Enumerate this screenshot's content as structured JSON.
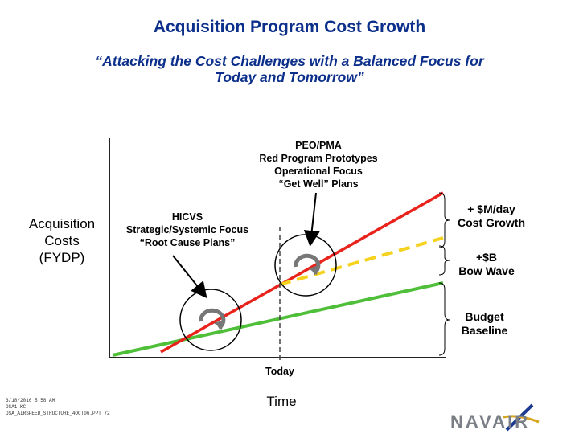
{
  "header": {
    "title": "Acquisition Program Cost Growth",
    "subtitle_line1": "“Attacking the Cost Challenges with a Balanced Focus for",
    "subtitle_line2": "Today and Tomorrow”"
  },
  "diagram": {
    "y_axis_label": [
      "Acquisition",
      "Costs",
      "(FYDP)"
    ],
    "x_axis_label": "Time",
    "today_label": "Today",
    "peo_pma_note": [
      "PEO/PMA",
      "Red Program Prototypes",
      "Operational Focus",
      "“Get Well” Plans"
    ],
    "hicvs_note": [
      "HICVS",
      "Strategic/Systemic Focus",
      "“Root Cause Plans”"
    ],
    "cost_growth_label": [
      "+ $M/day",
      "Cost Growth"
    ],
    "bow_wave_label": [
      "+$B",
      "Bow Wave"
    ],
    "budget_baseline_label": [
      "Budget",
      "Baseline"
    ],
    "colors": {
      "cost_growth_line": "#e8231c",
      "bow_wave_line": "#f5d21e",
      "baseline_line": "#4fbf3a",
      "title": "#0b2f8a"
    }
  },
  "footer": {
    "lines": [
      "3/18/2016 5:58 AM",
      "OSA1 KC",
      "OSA_AIRSPEED_STRUCTURE_4OCT06.PPT 72"
    ],
    "logo_text": "NAVAIR"
  }
}
